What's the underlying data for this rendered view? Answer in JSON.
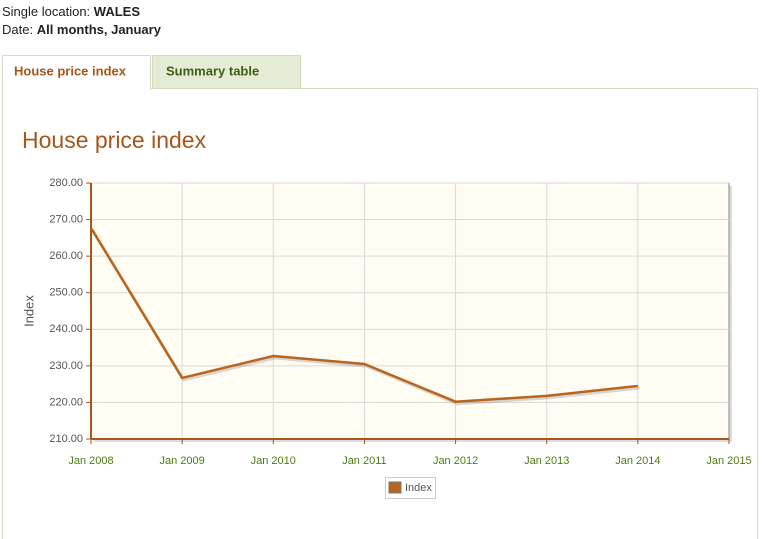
{
  "header": {
    "location_label": "Single location:",
    "location": "WALES",
    "date_label": "Date:",
    "date": "All months, January"
  },
  "tabs": [
    "House price index",
    "Summary table"
  ],
  "chart_data": {
    "type": "line",
    "title": "House price index",
    "y_label": "Index",
    "categories": [
      "Jan 2008",
      "Jan 2009",
      "Jan 2010",
      "Jan 2011",
      "Jan 2012",
      "Jan 2013",
      "Jan 2014",
      "Jan 2015"
    ],
    "series": [
      {
        "name": "Index",
        "color": "#b8651f",
        "values": [
          267.7,
          226.7,
          232.7,
          230.5,
          220.2,
          221.8,
          224.5,
          null
        ]
      }
    ],
    "ylim": [
      210,
      280
    ],
    "yticks": [
      {
        "value": 210,
        "label": "210.00"
      },
      {
        "value": 220,
        "label": "220.00"
      },
      {
        "value": 230,
        "label": "230.00"
      },
      {
        "value": 240,
        "label": "240.00"
      },
      {
        "value": 250,
        "label": "250.00"
      },
      {
        "value": 260,
        "label": "260.00"
      },
      {
        "value": 270,
        "label": "270.00"
      },
      {
        "value": 280,
        "label": "280.00"
      }
    ],
    "grid": true
  }
}
